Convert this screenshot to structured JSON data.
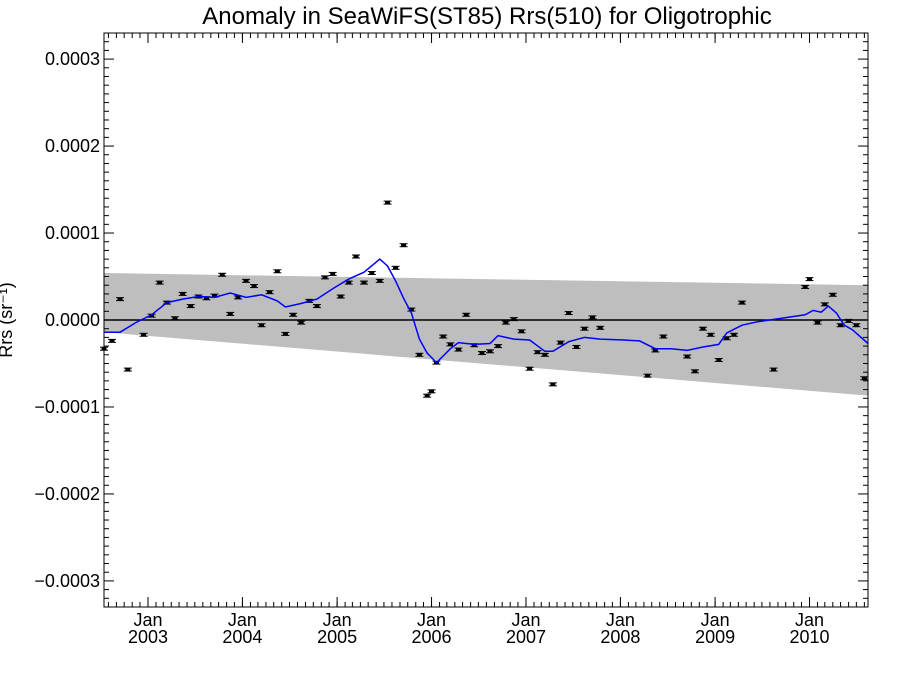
{
  "chart_data": {
    "type": "scatter",
    "title": "Anomaly in SeaWiFS(ST85) Rrs(510) for Oligotrophic",
    "ylabel": "Rrs (sr⁻¹)",
    "xlabel": "",
    "xlim": [
      "2002-07-15",
      "2010-08-15"
    ],
    "ylim": [
      -0.00033,
      0.00033
    ],
    "y_ticks": [
      {
        "value": 0.0003,
        "label": "0.0003"
      },
      {
        "value": 0.0002,
        "label": "0.0002"
      },
      {
        "value": 0.0001,
        "label": "0.0001"
      },
      {
        "value": 0.0,
        "label": "0.0000"
      },
      {
        "value": -0.0001,
        "label": "−0.0001"
      },
      {
        "value": -0.0002,
        "label": "−0.0002"
      },
      {
        "value": -0.0003,
        "label": "−0.0003"
      }
    ],
    "x_ticks": [
      {
        "date": "2003-01-01",
        "month": "Jan",
        "year": "2003"
      },
      {
        "date": "2004-01-01",
        "month": "Jan",
        "year": "2004"
      },
      {
        "date": "2005-01-01",
        "month": "Jan",
        "year": "2005"
      },
      {
        "date": "2006-01-01",
        "month": "Jan",
        "year": "2006"
      },
      {
        "date": "2007-01-01",
        "month": "Jan",
        "year": "2007"
      },
      {
        "date": "2008-01-01",
        "month": "Jan",
        "year": "2008"
      },
      {
        "date": "2009-01-01",
        "month": "Jan",
        "year": "2009"
      },
      {
        "date": "2010-01-01",
        "month": "Jan",
        "year": "2010"
      }
    ],
    "grid": false,
    "zero_line": true,
    "band": {
      "color": "#bebebe",
      "upper": [
        [
          "2002-07-15",
          5.4e-05
        ],
        [
          "2010-08-15",
          4e-05
        ]
      ],
      "lower": [
        [
          "2002-07-15",
          -1.4e-05
        ],
        [
          "2010-08-15",
          -8.7e-05
        ]
      ]
    },
    "series": [
      {
        "type": "scatter",
        "color": "#000000",
        "points": [
          [
            "2002-07-15",
            -3.3e-05
          ],
          [
            "2002-08-15",
            -2.4e-05
          ],
          [
            "2002-09-15",
            2.4e-05
          ],
          [
            "2002-10-15",
            -5.7e-05
          ],
          [
            "2002-12-15",
            -1.7e-05
          ],
          [
            "2003-01-15",
            5e-06
          ],
          [
            "2003-02-15",
            4.3e-05
          ],
          [
            "2003-03-15",
            2e-05
          ],
          [
            "2003-04-15",
            2e-06
          ],
          [
            "2003-05-15",
            3e-05
          ],
          [
            "2003-06-15",
            1.6e-05
          ],
          [
            "2003-07-15",
            2.7e-05
          ],
          [
            "2003-08-15",
            2.5e-05
          ],
          [
            "2003-09-15",
            2.8e-05
          ],
          [
            "2003-10-15",
            5.2e-05
          ],
          [
            "2003-11-15",
            7e-06
          ],
          [
            "2003-12-15",
            2.6e-05
          ],
          [
            "2004-01-15",
            4.5e-05
          ],
          [
            "2004-02-15",
            3.9e-05
          ],
          [
            "2004-03-15",
            -6e-06
          ],
          [
            "2004-04-15",
            3.2e-05
          ],
          [
            "2004-05-15",
            5.6e-05
          ],
          [
            "2004-06-15",
            -1.6e-05
          ],
          [
            "2004-07-15",
            6e-06
          ],
          [
            "2004-08-15",
            -3e-06
          ],
          [
            "2004-09-15",
            2.2e-05
          ],
          [
            "2004-10-15",
            1.6e-05
          ],
          [
            "2004-11-15",
            4.9e-05
          ],
          [
            "2004-12-15",
            5.3e-05
          ],
          [
            "2005-01-15",
            2.7e-05
          ],
          [
            "2005-02-15",
            4.3e-05
          ],
          [
            "2005-03-15",
            7.3e-05
          ],
          [
            "2005-04-15",
            4.3e-05
          ],
          [
            "2005-05-15",
            5.4e-05
          ],
          [
            "2005-06-15",
            4.5e-05
          ],
          [
            "2005-07-15",
            0.000135
          ],
          [
            "2005-08-15",
            6e-05
          ],
          [
            "2005-09-15",
            8.6e-05
          ],
          [
            "2005-10-15",
            1.2e-05
          ],
          [
            "2005-11-15",
            -4e-05
          ],
          [
            "2005-12-15",
            -8.7e-05
          ],
          [
            "2006-01-01",
            -8.2e-05
          ],
          [
            "2006-01-20",
            -4.9e-05
          ],
          [
            "2006-02-15",
            -1.9e-05
          ],
          [
            "2006-03-15",
            -2.8e-05
          ],
          [
            "2006-04-15",
            -3.4e-05
          ],
          [
            "2006-05-15",
            6e-06
          ],
          [
            "2006-06-15",
            -2.9e-05
          ],
          [
            "2006-07-15",
            -3.8e-05
          ],
          [
            "2006-08-15",
            -3.6e-05
          ],
          [
            "2006-09-15",
            -3e-05
          ],
          [
            "2006-10-15",
            -3e-06
          ],
          [
            "2006-11-15",
            1e-06
          ],
          [
            "2006-12-15",
            -1.3e-05
          ],
          [
            "2007-01-15",
            -5.6e-05
          ],
          [
            "2007-02-15",
            -3.7e-05
          ],
          [
            "2007-03-15",
            -4e-05
          ],
          [
            "2007-04-15",
            -7.4e-05
          ],
          [
            "2007-05-15",
            -2.6e-05
          ],
          [
            "2007-06-15",
            8e-06
          ],
          [
            "2007-07-15",
            -3.1e-05
          ],
          [
            "2007-08-15",
            -1e-05
          ],
          [
            "2007-09-15",
            3e-06
          ],
          [
            "2007-10-15",
            -9e-06
          ],
          [
            "2008-04-15",
            -6.4e-05
          ],
          [
            "2008-05-15",
            -3.5e-05
          ],
          [
            "2008-06-15",
            -1.9e-05
          ],
          [
            "2008-09-15",
            -4.2e-05
          ],
          [
            "2008-10-15",
            -5.9e-05
          ],
          [
            "2008-11-15",
            -1e-05
          ],
          [
            "2008-12-15",
            -1.7e-05
          ],
          [
            "2009-01-15",
            -4.6e-05
          ],
          [
            "2009-02-15",
            -2.1e-05
          ],
          [
            "2009-03-15",
            -1.7e-05
          ],
          [
            "2009-04-15",
            2e-05
          ],
          [
            "2009-08-15",
            -5.7e-05
          ],
          [
            "2009-12-15",
            3.8e-05
          ],
          [
            "2010-01-01",
            4.7e-05
          ],
          [
            "2010-02-01",
            -3e-06
          ],
          [
            "2010-03-01",
            1.8e-05
          ],
          [
            "2010-04-01",
            2.9e-05
          ],
          [
            "2010-05-01",
            -6e-06
          ],
          [
            "2010-06-01",
            -1e-06
          ],
          [
            "2010-07-01",
            -6e-06
          ],
          [
            "2010-08-01",
            -6.7e-05
          ]
        ]
      },
      {
        "type": "line",
        "color": "#0000ff",
        "points": [
          [
            "2002-07-15",
            -1.4e-05
          ],
          [
            "2002-09-15",
            -1.4e-05
          ],
          [
            "2002-11-15",
            -3e-06
          ],
          [
            "2003-01-15",
            6e-06
          ],
          [
            "2003-03-15",
            2e-05
          ],
          [
            "2003-05-15",
            2.4e-05
          ],
          [
            "2003-07-15",
            2.7e-05
          ],
          [
            "2003-09-15",
            2.6e-05
          ],
          [
            "2003-11-15",
            3.1e-05
          ],
          [
            "2004-01-15",
            2.6e-05
          ],
          [
            "2004-03-15",
            2.9e-05
          ],
          [
            "2004-05-15",
            2.2e-05
          ],
          [
            "2004-06-15",
            1.5e-05
          ],
          [
            "2004-08-15",
            1.9e-05
          ],
          [
            "2004-10-15",
            2.4e-05
          ],
          [
            "2004-12-15",
            3.6e-05
          ],
          [
            "2005-02-15",
            4.7e-05
          ],
          [
            "2005-04-15",
            5.5e-05
          ],
          [
            "2005-06-15",
            7e-05
          ],
          [
            "2005-07-15",
            6.2e-05
          ],
          [
            "2005-08-15",
            4.5e-05
          ],
          [
            "2005-09-15",
            2.5e-05
          ],
          [
            "2005-10-15",
            8e-06
          ],
          [
            "2005-11-15",
            -2.2e-05
          ],
          [
            "2005-12-15",
            -3.8e-05
          ],
          [
            "2006-01-20",
            -4.9e-05
          ],
          [
            "2006-03-15",
            -3.3e-05
          ],
          [
            "2006-04-15",
            -2.6e-05
          ],
          [
            "2006-06-15",
            -2.8e-05
          ],
          [
            "2006-08-15",
            -2.7e-05
          ],
          [
            "2006-09-15",
            -1.8e-05
          ],
          [
            "2006-11-15",
            -2.2e-05
          ],
          [
            "2007-01-15",
            -2.3e-05
          ],
          [
            "2007-03-15",
            -3.6e-05
          ],
          [
            "2007-04-15",
            -3.6e-05
          ],
          [
            "2007-06-15",
            -2.5e-05
          ],
          [
            "2007-08-15",
            -2e-05
          ],
          [
            "2007-10-15",
            -2.2e-05
          ],
          [
            "2008-01-15",
            -2.3e-05
          ],
          [
            "2008-03-15",
            -2.4e-05
          ],
          [
            "2008-05-15",
            -3.3e-05
          ],
          [
            "2008-07-15",
            -3.3e-05
          ],
          [
            "2008-09-15",
            -3.5e-05
          ],
          [
            "2008-11-15",
            -3.1e-05
          ],
          [
            "2009-01-15",
            -2.8e-05
          ],
          [
            "2009-02-15",
            -1.5e-05
          ],
          [
            "2009-04-15",
            -6e-06
          ],
          [
            "2009-06-15",
            -2e-06
          ],
          [
            "2009-09-15",
            2e-06
          ],
          [
            "2009-12-15",
            6e-06
          ],
          [
            "2010-01-15",
            1.1e-05
          ],
          [
            "2010-02-15",
            9e-06
          ],
          [
            "2010-03-15",
            1.6e-05
          ],
          [
            "2010-04-15",
            8e-06
          ],
          [
            "2010-05-15",
            -6e-06
          ],
          [
            "2010-06-15",
            -1.1e-05
          ],
          [
            "2010-08-15",
            -2.7e-05
          ]
        ]
      }
    ]
  }
}
